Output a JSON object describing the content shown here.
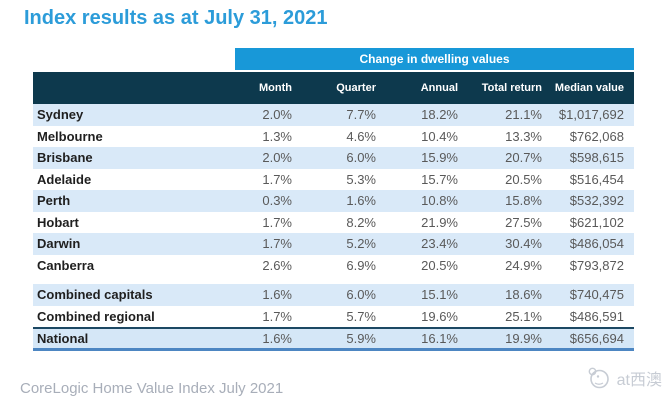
{
  "page": {
    "watermark_label": "at西澳"
  },
  "colors": {
    "title_blue": "#2c9cd9",
    "band_blue": "#1898d8",
    "header_navy": "#0d394d",
    "row_stripe_blue": "#d9e9f8",
    "national_top_border": "#1c4863",
    "national_bottom_border": "#4d86c2",
    "value_text_gray": "#595959",
    "caption_gray": "#a8aeb9",
    "watermark_gray": "#c7ccd4"
  },
  "chart_data": {
    "type": "table",
    "title": "Index results as at July 31, 2021",
    "group_header": "Change in dwelling values",
    "row_header_column": "",
    "columns": [
      "Month",
      "Quarter",
      "Annual",
      "Total return",
      "Median value"
    ],
    "rows": [
      {
        "label": "Sydney",
        "values": [
          "2.0%",
          "7.7%",
          "18.2%",
          "21.1%",
          "$1,017,692"
        ]
      },
      {
        "label": "Melbourne",
        "values": [
          "1.3%",
          "4.6%",
          "10.4%",
          "13.3%",
          "$762,068"
        ]
      },
      {
        "label": "Brisbane",
        "values": [
          "2.0%",
          "6.0%",
          "15.9%",
          "20.7%",
          "$598,615"
        ]
      },
      {
        "label": "Adelaide",
        "values": [
          "1.7%",
          "5.3%",
          "15.7%",
          "20.5%",
          "$516,454"
        ]
      },
      {
        "label": "Perth",
        "values": [
          "0.3%",
          "1.6%",
          "10.8%",
          "15.8%",
          "$532,392"
        ]
      },
      {
        "label": "Hobart",
        "values": [
          "1.7%",
          "8.2%",
          "21.9%",
          "27.5%",
          "$621,102"
        ]
      },
      {
        "label": "Darwin",
        "values": [
          "1.7%",
          "5.2%",
          "23.4%",
          "30.4%",
          "$486,054"
        ]
      },
      {
        "label": "Canberra",
        "values": [
          "2.6%",
          "6.9%",
          "20.5%",
          "24.9%",
          "$793,872"
        ]
      },
      {
        "label": "Combined capitals",
        "values": [
          "1.6%",
          "6.0%",
          "15.1%",
          "18.6%",
          "$740,475"
        ],
        "gap_before": true
      },
      {
        "label": "Combined regional",
        "values": [
          "1.7%",
          "5.7%",
          "19.6%",
          "25.1%",
          "$486,591"
        ]
      },
      {
        "label": "National",
        "values": [
          "1.6%",
          "5.9%",
          "16.1%",
          "19.9%",
          "$656,694"
        ],
        "emphasis": true
      }
    ],
    "source": "CoreLogic Home Value Index July 2021",
    "legend_position": "none",
    "grid": "row-stripes"
  }
}
